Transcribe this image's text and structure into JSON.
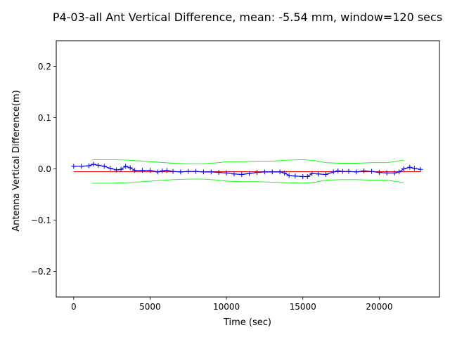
{
  "chart_data": {
    "type": "line",
    "title": "P4-03-all Ant Vertical Difference, mean: -5.54 mm, window=120 secs",
    "xlabel": "Time (sec)",
    "ylabel": "Antenna Vertical Difference(m)",
    "xlim": [
      -1140,
      23940
    ],
    "ylim": [
      -0.25,
      0.25
    ],
    "x_ticks": [
      0,
      5000,
      10000,
      15000,
      20000
    ],
    "x_tick_labels": [
      "0",
      "5000",
      "10000",
      "15000",
      "20000"
    ],
    "y_ticks": [
      -0.2,
      -0.1,
      0.0,
      0.1,
      0.2
    ],
    "y_tick_labels": [
      "−0.2",
      "−0.1",
      "0.0",
      "0.1",
      "0.2"
    ],
    "grid": false,
    "series": [
      {
        "name": "windowed difference",
        "style": "line+plus",
        "color": "#0000ff",
        "x": [
          0,
          500,
          1000,
          1300,
          1600,
          2000,
          2400,
          2800,
          3100,
          3400,
          3700,
          4000,
          4500,
          5000,
          5500,
          5800,
          6100,
          6500,
          7000,
          7500,
          8000,
          8500,
          9000,
          9500,
          10000,
          10500,
          11000,
          11500,
          12000,
          12500,
          13000,
          13500,
          13800,
          14100,
          14500,
          15000,
          15300,
          15600,
          16000,
          16500,
          17000,
          17300,
          17600,
          18000,
          18500,
          19000,
          19500,
          20000,
          20500,
          21000,
          21300,
          21600,
          22000,
          22300,
          22700
        ],
        "values": [
          0.005,
          0.005,
          0.006,
          0.009,
          0.007,
          0.005,
          0.001,
          -0.002,
          -0.001,
          0.005,
          0.002,
          -0.003,
          -0.003,
          -0.003,
          -0.006,
          -0.004,
          -0.003,
          -0.005,
          -0.006,
          -0.005,
          -0.005,
          -0.006,
          -0.006,
          -0.007,
          -0.008,
          -0.01,
          -0.011,
          -0.009,
          -0.007,
          -0.006,
          -0.006,
          -0.006,
          -0.008,
          -0.013,
          -0.014,
          -0.015,
          -0.015,
          -0.009,
          -0.01,
          -0.011,
          -0.006,
          -0.004,
          -0.005,
          -0.005,
          -0.006,
          -0.004,
          -0.005,
          -0.007,
          -0.008,
          -0.008,
          -0.006,
          0.0,
          0.003,
          0.001,
          -0.001
        ]
      },
      {
        "name": "mean",
        "style": "line",
        "color": "#ff0000",
        "x": [
          0,
          22700
        ],
        "values": [
          -0.00554,
          -0.00554
        ]
      },
      {
        "name": "upper band",
        "style": "line",
        "color": "#00ff00",
        "x": [
          1200,
          2500,
          3500,
          4500,
          5500,
          6500,
          7500,
          8500,
          9500,
          10000,
          11000,
          12000,
          13000,
          14000,
          15000,
          15800,
          16500,
          17500,
          18500,
          19500,
          20500,
          21600
        ],
        "values": [
          0.018,
          0.018,
          0.017,
          0.015,
          0.013,
          0.011,
          0.01,
          0.01,
          0.012,
          0.014,
          0.014,
          0.015,
          0.015,
          0.017,
          0.018,
          0.016,
          0.012,
          0.011,
          0.011,
          0.012,
          0.012,
          0.017
        ]
      },
      {
        "name": "lower band",
        "style": "line",
        "color": "#00ff00",
        "x": [
          1200,
          2500,
          3500,
          4500,
          5500,
          6500,
          7500,
          8500,
          9500,
          10000,
          11000,
          12000,
          13000,
          14000,
          15000,
          15800,
          16500,
          17500,
          18500,
          19500,
          20500,
          21600
        ],
        "values": [
          -0.028,
          -0.028,
          -0.027,
          -0.025,
          -0.023,
          -0.021,
          -0.02,
          -0.02,
          -0.022,
          -0.024,
          -0.025,
          -0.025,
          -0.026,
          -0.027,
          -0.028,
          -0.026,
          -0.022,
          -0.021,
          -0.021,
          -0.022,
          -0.022,
          -0.027
        ]
      }
    ]
  }
}
